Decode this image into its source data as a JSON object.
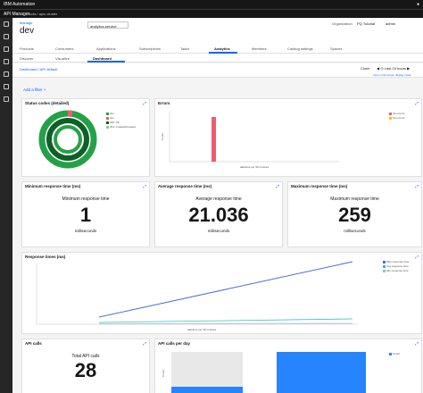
{
  "topbar": {
    "brand": "IBM Automation"
  },
  "subbar": {
    "title": "API Manager",
    "crumbs": "tools / apic-cluster"
  },
  "header": {
    "back": "Manage",
    "title": "dev",
    "catalog_select": "analytics-service",
    "org_label": "Organization",
    "org_value": "PQ Tutorial",
    "user": "admin"
  },
  "tabs": [
    "Products",
    "Consumers",
    "Applications",
    "Subscriptions",
    "Tasks",
    "Analytics",
    "Members",
    "Catalog settings",
    "Spaces"
  ],
  "subtabs": [
    "Discover",
    "Visualize",
    "Dashboard"
  ],
  "filterbar": {
    "crumbs": "Dashboard  /  API default",
    "clone": "Clone",
    "time": "Last 24 hours",
    "open_link": "View in full screen display mode"
  },
  "add_filter": "Add a filter +",
  "panels": {
    "status": {
      "title": "Status codes (detailed)",
      "legend": [
        "2xx",
        "4xx",
        "200: OK",
        "201: Created/Created"
      ]
    },
    "errors": {
      "title": "Errors",
      "legend": [
        "4xx errors",
        "5xx errors"
      ],
      "xlabel": "datetime per 30 minutes",
      "ylabel": "Count"
    },
    "min": {
      "title": "Minimum response time (ms)",
      "label": "Minimum response time",
      "value": "1",
      "unit": "milliseconds"
    },
    "avg": {
      "title": "Average response time (ms)",
      "label": "Average response time",
      "value": "21.036",
      "unit": "milliseconds"
    },
    "max": {
      "title": "Maximum response time (ms)",
      "label": "Maximum response time",
      "value": "259",
      "unit": "milliseconds"
    },
    "response": {
      "title": "Response times (ms)",
      "legend": [
        "Max response time",
        "Avg response time",
        "Min response time"
      ],
      "xlabel": "datetime per 30 minutes"
    },
    "calls": {
      "title": "API calls",
      "label": "Total API calls",
      "value": "28"
    },
    "perday": {
      "title": "API calls per day",
      "legend": [
        "Count"
      ],
      "ylabel": "Count"
    }
  },
  "colors": {
    "ring_outer": "#24a148",
    "ring_inner": "#0e6027",
    "error_bar": "#ee5d6c",
    "max_line": "#4a6fd6",
    "avg_line": "#2ec4b6",
    "min_line": "#a3b3d9",
    "day_bar": "#2684ff"
  }
}
